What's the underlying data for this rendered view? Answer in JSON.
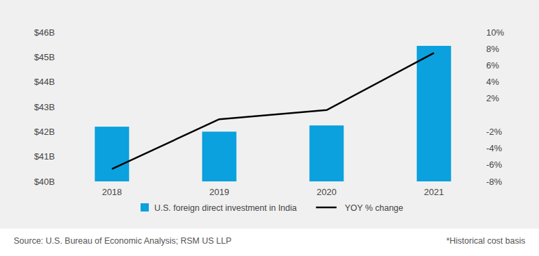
{
  "chart_data": {
    "type": "bar",
    "categories": [
      "2018",
      "2019",
      "2020",
      "2021"
    ],
    "series": [
      {
        "name": "U.S. foreign direct investment in India",
        "type": "bar",
        "color": "#0aa1de",
        "values": [
          42.2,
          42.0,
          42.25,
          45.45
        ]
      },
      {
        "name": "YOY % change",
        "type": "line",
        "color": "#000000",
        "axis": "y2",
        "values": [
          -6.5,
          -0.5,
          0.6,
          7.5
        ]
      }
    ],
    "ylim": [
      40,
      46
    ],
    "yticks": [
      {
        "value": 40,
        "label": "$40B"
      },
      {
        "value": 41,
        "label": "$41B"
      },
      {
        "value": 42,
        "label": "$42B"
      },
      {
        "value": 43,
        "label": "$43B"
      },
      {
        "value": 44,
        "label": "$44B"
      },
      {
        "value": 45,
        "label": "$45B"
      },
      {
        "value": 46,
        "label": "$46B"
      }
    ],
    "y2lim": [
      -8,
      10
    ],
    "y2ticks": [
      {
        "value": -8,
        "label": "-8%"
      },
      {
        "value": -6,
        "label": "-6%"
      },
      {
        "value": -4,
        "label": "-4%"
      },
      {
        "value": -2,
        "label": "-2%"
      },
      {
        "value": 2,
        "label": "2%"
      },
      {
        "value": 4,
        "label": "4%"
      },
      {
        "value": 6,
        "label": "6%"
      },
      {
        "value": 8,
        "label": "8%"
      },
      {
        "value": 10,
        "label": "10%"
      }
    ],
    "grid": false,
    "legend": "bottom",
    "source": "Source: U.S. Bureau of Economic Analysis; RSM US LLP",
    "note": "*Historical cost basis"
  }
}
